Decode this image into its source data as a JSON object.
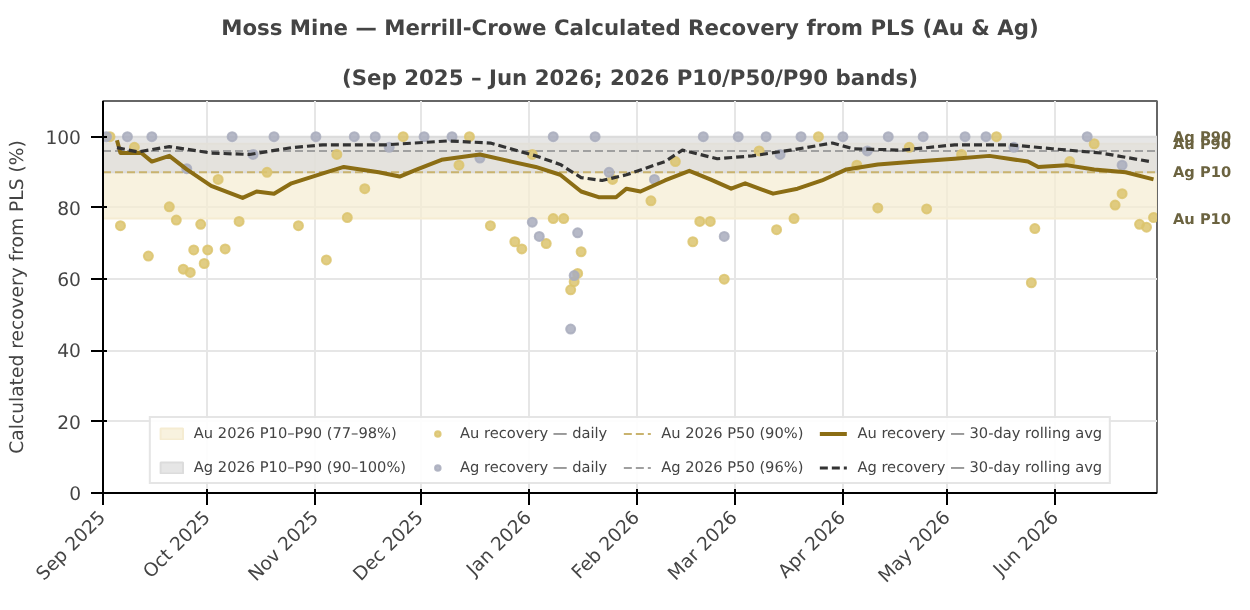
{
  "chart_data": {
    "type": "line",
    "title": "Moss Mine — Merrill-Crowe Calculated Recovery from PLS (Au & Ag)",
    "subtitle": "(Sep 2025 – Jun 2026; 2026 P10/P50/P90 bands)",
    "ylabel": "Calculated recovery from PLS (%)",
    "xlim": [
      "2025-09-01",
      "2026-06-30"
    ],
    "ylim": [
      0,
      110
    ],
    "xticks": [
      {
        "value": "2025-09-01",
        "label": "Sep 2025"
      },
      {
        "value": "2025-10-01",
        "label": "Oct 2025"
      },
      {
        "value": "2025-11-01",
        "label": "Nov 2025"
      },
      {
        "value": "2025-12-01",
        "label": "Dec 2025"
      },
      {
        "value": "2026-01-01",
        "label": "Jan 2026"
      },
      {
        "value": "2026-02-01",
        "label": "Feb 2026"
      },
      {
        "value": "2026-03-01",
        "label": "Mar 2026"
      },
      {
        "value": "2026-04-01",
        "label": "Apr 2026"
      },
      {
        "value": "2026-05-01",
        "label": "May 2026"
      },
      {
        "value": "2026-06-01",
        "label": "Jun 2026"
      }
    ],
    "yticks": [
      0,
      20,
      40,
      60,
      80,
      100
    ],
    "grid": true,
    "legend": "bottom",
    "bands": [
      {
        "axis": "y",
        "from": 77,
        "to": 98,
        "label": "Au 2026 P10–P90 (77–98%)",
        "color": "#f5ecd2"
      },
      {
        "axis": "y",
        "from": 90,
        "to": 100,
        "label": "Ag 2026 P10–P90 (90–100%)",
        "color": "#dcdcdc"
      }
    ],
    "ref_lines": [
      {
        "axis": "y",
        "value": 90,
        "label": "Au 2026 P50 (90%)",
        "color": "#c9b36e",
        "line_style": "dashed"
      },
      {
        "axis": "y",
        "value": 96,
        "label": "Ag 2026 P50 (96%)",
        "color": "#a0a0a0",
        "line_style": "dashed"
      }
    ],
    "annotations": [
      {
        "text": "Ag P90",
        "x": "2026-06-30",
        "y": 100
      },
      {
        "text": "Au P90",
        "x": "2026-06-30",
        "y": 98
      },
      {
        "text": "Ag P10",
        "x": "2026-06-30",
        "y": 90
      },
      {
        "text": "Au P10",
        "x": "2026-06-30",
        "y": 77
      }
    ],
    "series": [
      {
        "name": "Au recovery — daily",
        "type": "scatter",
        "marker": "circle",
        "color": "#dcc46f",
        "x": [
          "2025-09-03",
          "2025-09-06",
          "2025-09-10",
          "2025-09-14",
          "2025-09-20",
          "2025-09-22",
          "2025-09-24",
          "2025-09-26",
          "2025-09-27",
          "2025-09-29",
          "2025-09-30",
          "2025-10-01",
          "2025-10-04",
          "2025-10-06",
          "2025-10-10",
          "2025-10-18",
          "2025-10-27",
          "2025-11-04",
          "2025-11-07",
          "2025-11-10",
          "2025-11-15",
          "2025-11-26",
          "2025-12-12",
          "2025-12-15",
          "2025-12-21",
          "2025-12-28",
          "2025-12-30",
          "2026-01-02",
          "2026-01-06",
          "2026-01-08",
          "2026-01-11",
          "2026-01-13",
          "2026-01-14",
          "2026-01-15",
          "2026-01-16",
          "2026-01-25",
          "2026-02-05",
          "2026-02-12",
          "2026-02-17",
          "2026-02-19",
          "2026-02-22",
          "2026-02-26",
          "2026-03-08",
          "2026-03-13",
          "2026-03-18",
          "2026-03-25",
          "2026-04-05",
          "2026-04-11",
          "2026-04-20",
          "2026-04-25",
          "2026-05-05",
          "2026-05-15",
          "2026-05-25",
          "2026-05-26",
          "2026-06-05",
          "2026-06-12",
          "2026-06-18",
          "2026-06-20",
          "2026-06-25",
          "2026-06-27",
          "2026-06-29"
        ],
        "values": [
          100,
          75,
          97,
          66.5,
          80.3,
          76.6,
          62.8,
          61.9,
          68.2,
          75.4,
          64.4,
          68.2,
          88,
          68.5,
          76.2,
          90,
          75,
          65.4,
          95,
          77.3,
          85.4,
          100,
          92,
          100,
          75,
          70.5,
          68.5,
          95,
          70,
          77,
          77,
          57,
          59.3,
          61.6,
          67.7,
          88,
          82,
          93,
          70.5,
          76.2,
          76.2,
          60,
          96,
          73.9,
          77,
          100,
          92,
          80,
          97,
          79.7,
          95,
          100,
          59,
          74.2,
          93,
          98,
          80.8,
          84,
          75.4,
          74.6,
          77.3
        ]
      },
      {
        "name": "Ag recovery — daily",
        "type": "scatter",
        "marker": "circle",
        "color": "#a9adbd",
        "x": [
          "2025-09-02",
          "2025-09-08",
          "2025-09-15",
          "2025-09-25",
          "2025-10-08",
          "2025-10-14",
          "2025-10-20",
          "2025-11-01",
          "2025-11-12",
          "2025-11-18",
          "2025-11-22",
          "2025-12-02",
          "2025-12-10",
          "2025-12-18",
          "2026-01-02",
          "2026-01-04",
          "2026-01-08",
          "2026-01-13",
          "2026-01-14",
          "2026-01-15",
          "2026-01-20",
          "2026-01-24",
          "2026-02-06",
          "2026-02-20",
          "2026-02-26",
          "2026-03-02",
          "2026-03-10",
          "2026-03-14",
          "2026-03-20",
          "2026-04-01",
          "2026-04-08",
          "2026-04-14",
          "2026-04-24",
          "2026-05-06",
          "2026-05-12",
          "2026-05-20",
          "2026-06-10",
          "2026-06-20"
        ],
        "values": [
          100,
          100,
          100,
          91,
          100,
          95,
          100,
          100,
          100,
          100,
          97,
          100,
          100,
          94,
          76,
          72,
          100,
          46,
          61,
          73,
          100,
          90,
          88,
          100,
          72,
          100,
          100,
          95,
          100,
          100,
          96,
          100,
          100,
          100,
          100,
          97,
          100,
          92
        ]
      },
      {
        "name": "Au recovery — 30-day rolling avg",
        "line_style": "solid",
        "color": "#8b6d14",
        "x": [
          "2025-09-05",
          "2025-09-06",
          "2025-09-12",
          "2025-09-15",
          "2025-09-20",
          "2025-09-25",
          "2025-10-02",
          "2025-10-11",
          "2025-10-15",
          "2025-10-20",
          "2025-10-25",
          "2025-11-03",
          "2025-11-09",
          "2025-11-19",
          "2025-11-25",
          "2025-11-30",
          "2025-12-07",
          "2025-12-18",
          "2025-12-27",
          "2026-01-03",
          "2026-01-10",
          "2026-01-16",
          "2026-01-21",
          "2026-01-26",
          "2026-01-29",
          "2026-02-02",
          "2026-02-09",
          "2026-02-16",
          "2026-02-22",
          "2026-02-28",
          "2026-03-04",
          "2026-03-12",
          "2026-03-19",
          "2026-03-26",
          "2026-04-02",
          "2026-04-11",
          "2026-04-22",
          "2026-05-03",
          "2026-05-13",
          "2026-05-24",
          "2026-05-27",
          "2026-06-04",
          "2026-06-12",
          "2026-06-21",
          "2026-06-29"
        ],
        "values": [
          99,
          95.4,
          95.4,
          93,
          94.6,
          90.8,
          86.2,
          82.8,
          84.6,
          84,
          86.9,
          89.7,
          91.5,
          90,
          88.8,
          90.8,
          93.5,
          95,
          93,
          91.5,
          89.3,
          84.6,
          83,
          83,
          85.4,
          84.6,
          87.7,
          90.4,
          88,
          85.4,
          86.9,
          84,
          85.4,
          87.7,
          90.8,
          92.2,
          93,
          93.8,
          94.6,
          93,
          91.5,
          92,
          90.8,
          90,
          88
        ]
      },
      {
        "name": "Ag recovery — 30-day rolling avg",
        "line_style": "dashed",
        "color": "#333333",
        "x": [
          "2025-09-05",
          "2025-09-11",
          "2025-09-20",
          "2025-10-02",
          "2025-10-13",
          "2025-10-25",
          "2025-11-03",
          "2025-11-21",
          "2025-12-09",
          "2025-12-21",
          "2026-01-03",
          "2026-01-10",
          "2026-01-16",
          "2026-01-22",
          "2026-01-29",
          "2026-02-09",
          "2026-02-14",
          "2026-02-24",
          "2026-03-06",
          "2026-03-17",
          "2026-03-29",
          "2026-04-04",
          "2026-04-18",
          "2026-05-03",
          "2026-05-19",
          "2026-05-31",
          "2026-06-14",
          "2026-06-28"
        ],
        "values": [
          96.9,
          95.7,
          97.2,
          95.4,
          95,
          96.9,
          97.7,
          97.7,
          98.8,
          98.2,
          94.6,
          92.2,
          88.5,
          87.7,
          89.3,
          93,
          96.2,
          93.8,
          94.6,
          96.2,
          98.2,
          96.6,
          96.2,
          97.7,
          97.7,
          96.6,
          95.4,
          93
        ]
      }
    ]
  }
}
